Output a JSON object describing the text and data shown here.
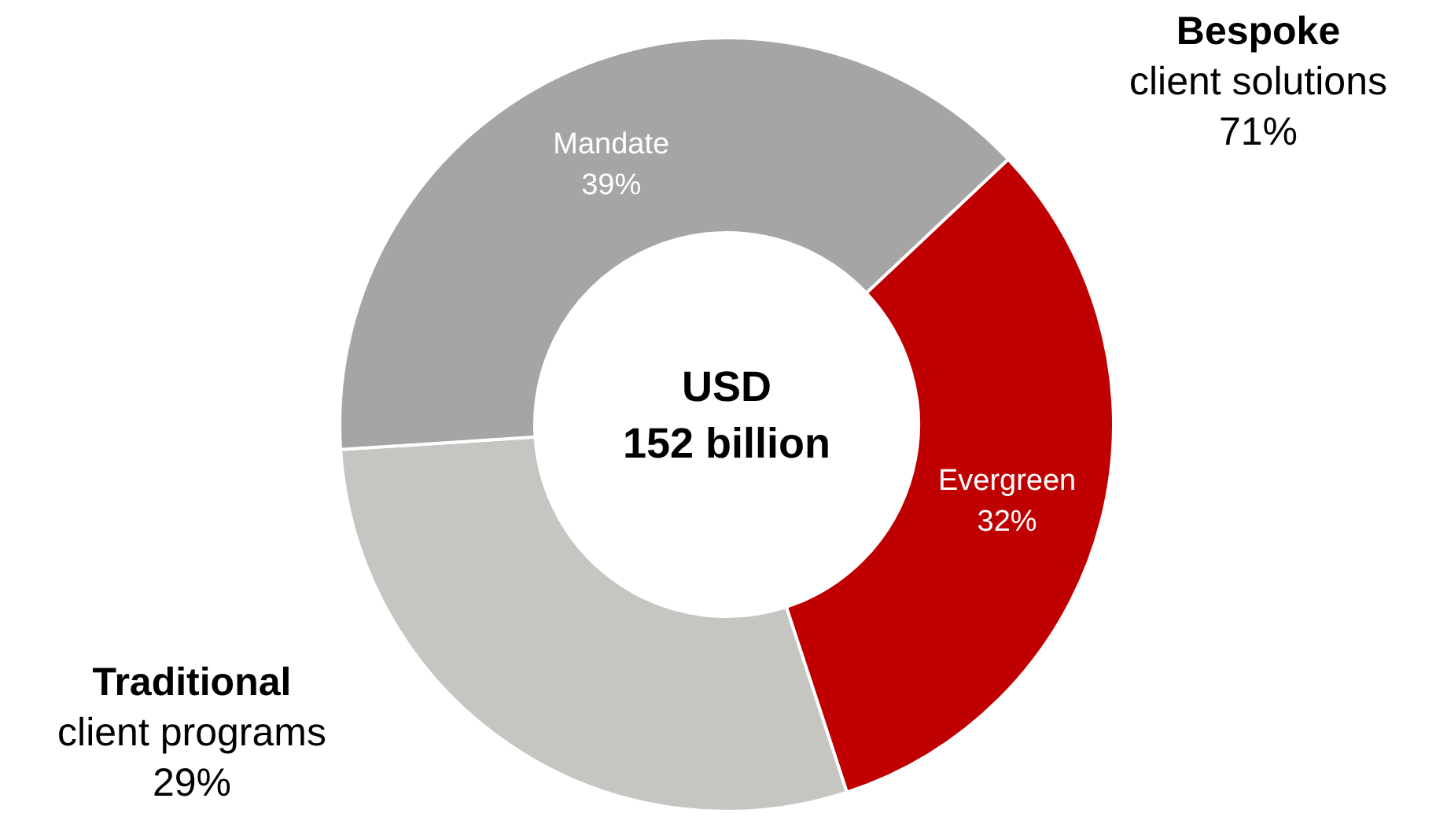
{
  "chart_data": {
    "type": "donut",
    "title": "USD\n152 billion",
    "categories": [
      "Evergreen",
      null,
      "Mandate"
    ],
    "values": [
      32,
      29,
      39
    ],
    "colors": [
      "#c00000",
      "#c5c6c2",
      "#a5a5a5"
    ],
    "value_labels": [
      "32%",
      null,
      "39%"
    ],
    "annotations": [
      "Bespoke\nclient solutions\n71%",
      "Traditional\nclient programs\n29%"
    ]
  }
}
